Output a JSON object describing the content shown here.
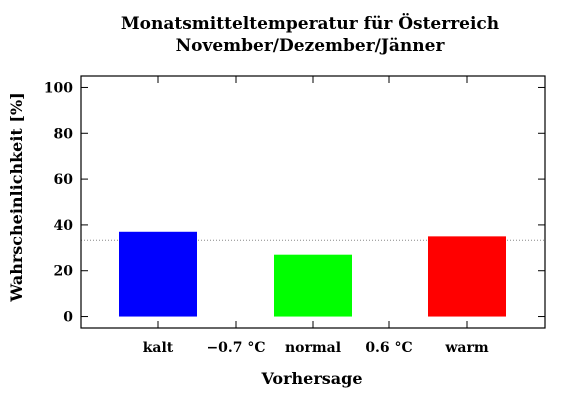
{
  "chart_data": {
    "type": "bar",
    "title": "Monatsmitteltemperatur für Österreich",
    "subtitle": "November/Dezember/Jänner",
    "xlabel": "Vorhersage",
    "ylabel": "Wahrscheinlichkeit [%]",
    "categories": [
      "kalt",
      "normal",
      "warm"
    ],
    "values": [
      37,
      27,
      35
    ],
    "colors": [
      "#0000ff",
      "#00ff00",
      "#ff0000"
    ],
    "threshold_labels": [
      "−0.7 °C",
      "0.6 °C"
    ],
    "ylim": [
      -5,
      105
    ],
    "yticks": [
      0,
      20,
      40,
      60,
      80,
      100
    ],
    "reference_line": 33.3,
    "grid": false,
    "legend": "none"
  }
}
